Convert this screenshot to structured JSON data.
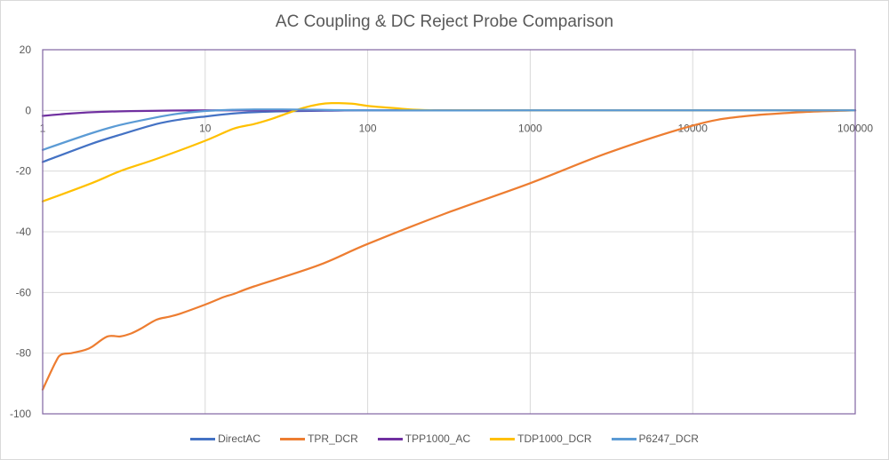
{
  "chart_data": {
    "type": "line",
    "title": "AC Coupling & DC Reject Probe Comparison",
    "xlabel": "",
    "ylabel": "",
    "xscale": "log",
    "xlim": [
      1,
      100000
    ],
    "ylim": [
      -100,
      20
    ],
    "x_ticks": [
      "1",
      "10",
      "100",
      "1000",
      "10000",
      "100000"
    ],
    "y_ticks": [
      "20",
      "0",
      "-20",
      "-40",
      "-60",
      "-80",
      "-100"
    ],
    "grid": true,
    "legend_position": "bottom",
    "series": [
      {
        "name": "DirectAC",
        "color": "#4472C4",
        "x": [
          1,
          2,
          3,
          5,
          7,
          10,
          15,
          20,
          30,
          50,
          100,
          1000,
          10000,
          100000
        ],
        "y": [
          -17,
          -11,
          -8,
          -4.5,
          -3,
          -2,
          -1,
          -0.6,
          -0.3,
          -0.1,
          0,
          0,
          0,
          0
        ]
      },
      {
        "name": "TPR_DCR",
        "color": "#ED7D31",
        "x": [
          1,
          1.2,
          1.3,
          1.5,
          1.8,
          2,
          2.5,
          3,
          3.5,
          4,
          5,
          6,
          7,
          10,
          13,
          15,
          20,
          50,
          100,
          300,
          1000,
          3000,
          10000,
          20000,
          50000,
          100000
        ],
        "y": [
          -92,
          -83,
          -80.5,
          -80,
          -79,
          -78,
          -74.5,
          -74.5,
          -73.5,
          -72,
          -69,
          -68,
          -67,
          -64,
          -61.5,
          -60.5,
          -58,
          -51,
          -44,
          -34,
          -24,
          -14,
          -5,
          -2,
          -0.5,
          0
        ]
      },
      {
        "name": "TPP1000_AC",
        "color": "#7030A0",
        "x": [
          1,
          1.5,
          2,
          3,
          5,
          10,
          100,
          1000,
          10000,
          100000
        ],
        "y": [
          -1.8,
          -1,
          -0.6,
          -0.3,
          -0.1,
          0,
          0,
          0,
          0,
          0
        ]
      },
      {
        "name": "TDP1000_DCR",
        "color": "#FFC000",
        "x": [
          1,
          2,
          3,
          5,
          10,
          15,
          20,
          25,
          30,
          40,
          50,
          60,
          80,
          100,
          150,
          200,
          300,
          1000,
          10000,
          100000
        ],
        "y": [
          -30,
          -24,
          -20,
          -16,
          -10,
          -6,
          -4.5,
          -3,
          -1.5,
          0.8,
          2,
          2.4,
          2.2,
          1.5,
          0.7,
          0.2,
          0,
          0,
          0,
          0
        ]
      },
      {
        "name": "P6247_DCR",
        "color": "#5B9BD5",
        "x": [
          1,
          2,
          3,
          5,
          7,
          10,
          15,
          20,
          30,
          50,
          100,
          1000,
          10000,
          100000
        ],
        "y": [
          -13,
          -7.5,
          -4.8,
          -2.3,
          -1,
          -0.2,
          0.2,
          0.3,
          0.3,
          0.2,
          0,
          0,
          0,
          0
        ]
      }
    ]
  }
}
